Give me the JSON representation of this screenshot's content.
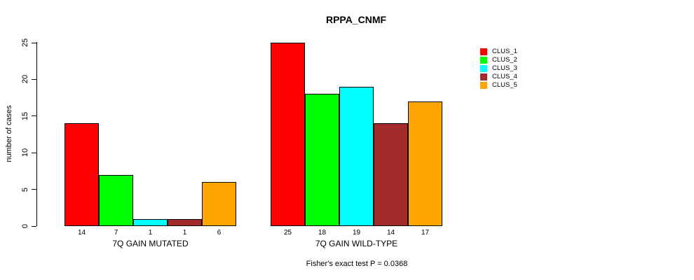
{
  "title": "RPPA_CNMF",
  "chart_data": {
    "type": "bar",
    "title": "RPPA_CNMF",
    "ylabel": "number of cases",
    "ylim": [
      0,
      25
    ],
    "yticks": [
      0,
      5,
      10,
      15,
      20,
      25
    ],
    "grid": false,
    "legend_position": "right",
    "categories": [
      "7Q GAIN MUTATED",
      "7Q GAIN WILD-TYPE"
    ],
    "series": [
      {
        "name": "CLUS_1",
        "color": "#FF0000",
        "values": [
          14,
          25
        ]
      },
      {
        "name": "CLUS_2",
        "color": "#00FF00",
        "values": [
          7,
          18
        ]
      },
      {
        "name": "CLUS_3",
        "color": "#00FFFF",
        "values": [
          1,
          19
        ]
      },
      {
        "name": "CLUS_4",
        "color": "#A52A2A",
        "values": [
          1,
          14
        ]
      },
      {
        "name": "CLUS_5",
        "color": "#FFA500",
        "values": [
          6,
          17
        ]
      }
    ],
    "bar_value_labels": [
      [
        14,
        7,
        1,
        1,
        6
      ],
      [
        25,
        18,
        19,
        14,
        17
      ]
    ],
    "annotation": "Fisher's exact test P = 0.0368"
  },
  "footer": {
    "text": "Fisher's exact test P = 0.0368"
  }
}
